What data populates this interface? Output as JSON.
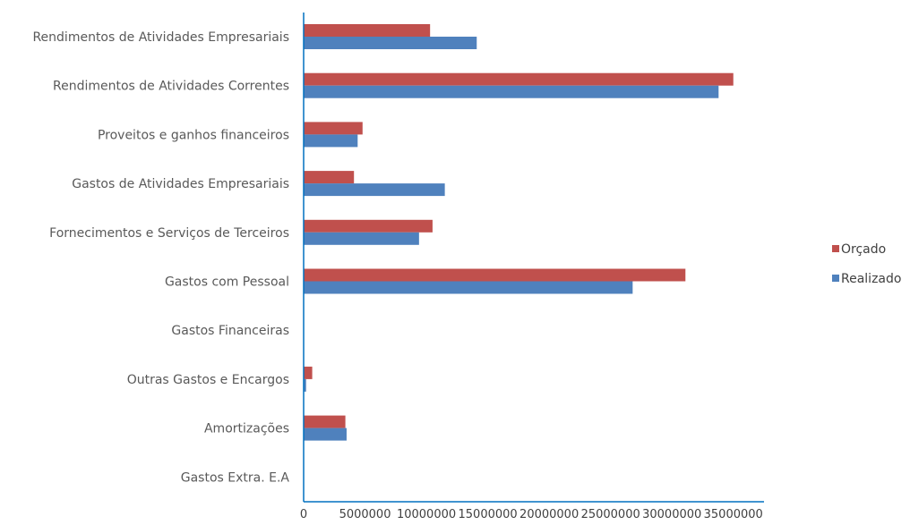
{
  "chart_data": {
    "type": "bar",
    "orientation": "horizontal",
    "title": "",
    "xlabel": "",
    "ylabel": "",
    "categories": [
      "Rendimentos de Atividades Empresariais",
      "Rendimentos de Atividades Correntes",
      "Proveitos e ganhos financeiros",
      "Gastos de Atividades Empresariais",
      "Fornecimentos e Serviços de Terceiros",
      "Gastos com Pessoal",
      "Gastos Financeiras",
      "Outras Gastos e Encargos",
      "Amortizações",
      "Gastos Extra. E.A"
    ],
    "series": [
      {
        "name": "Orçado",
        "color": "#c0504d",
        "values": [
          10300000,
          35000000,
          4800000,
          4100000,
          10500000,
          31100000,
          0,
          700000,
          3400000,
          0
        ]
      },
      {
        "name": "Realizado",
        "color": "#4f81bd",
        "values": [
          14100000,
          33800000,
          4400000,
          11500000,
          9400000,
          26800000,
          0,
          200000,
          3500000,
          0
        ]
      }
    ],
    "xlim": [
      0,
      37500000
    ],
    "ticks": [
      "0",
      "5000000",
      "10000000",
      "15000000",
      "20000000",
      "25000000",
      "30000000",
      "35000000"
    ],
    "tick_values": [
      0,
      5000000,
      10000000,
      15000000,
      20000000,
      25000000,
      30000000,
      35000000
    ],
    "grid": false,
    "legend_position": "right",
    "axis_color": "#0070c0"
  }
}
